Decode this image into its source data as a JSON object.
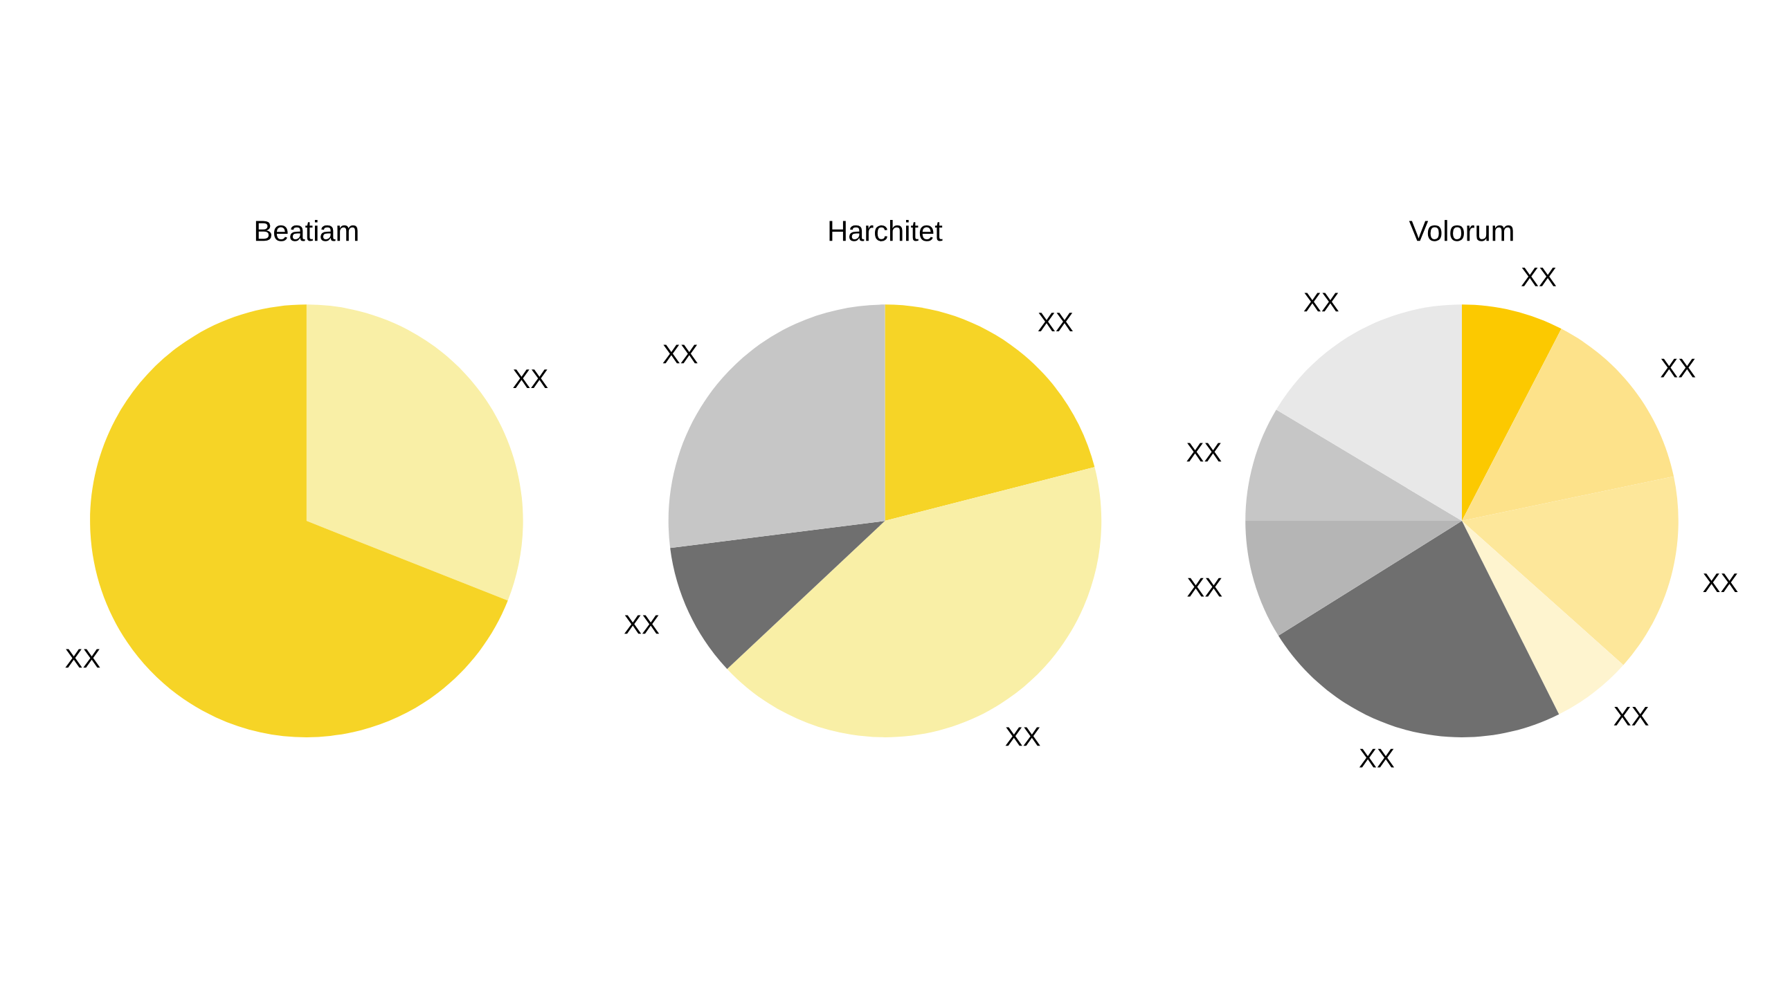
{
  "chart_data": [
    {
      "type": "pie",
      "title": "Beatiam",
      "categories": [
        "XX",
        "XX"
      ],
      "values": [
        31,
        69
      ],
      "colors": [
        "#f9efa6",
        "#f6d426"
      ]
    },
    {
      "type": "pie",
      "title": "Harchitet",
      "categories": [
        "XX",
        "XX",
        "XX",
        "XX"
      ],
      "values": [
        21,
        42,
        10,
        27
      ],
      "colors": [
        "#f6d426",
        "#f9efa6",
        "#6f6f6f",
        "#c6c6c6"
      ]
    },
    {
      "type": "pie",
      "title": "Volorum",
      "categories": [
        "XX",
        "XX",
        "XX",
        "XX",
        "XX",
        "XX",
        "XX",
        "XX"
      ],
      "values": [
        7.6,
        14.1,
        14.9,
        6.0,
        23.5,
        8.9,
        8.6,
        16.4
      ],
      "colors": [
        "#fcc900",
        "#fde28a",
        "#fde79a",
        "#fef4cf",
        "#6f6f6f",
        "#b5b5b5",
        "#c6c6c6",
        "#e8e8e8"
      ]
    }
  ]
}
